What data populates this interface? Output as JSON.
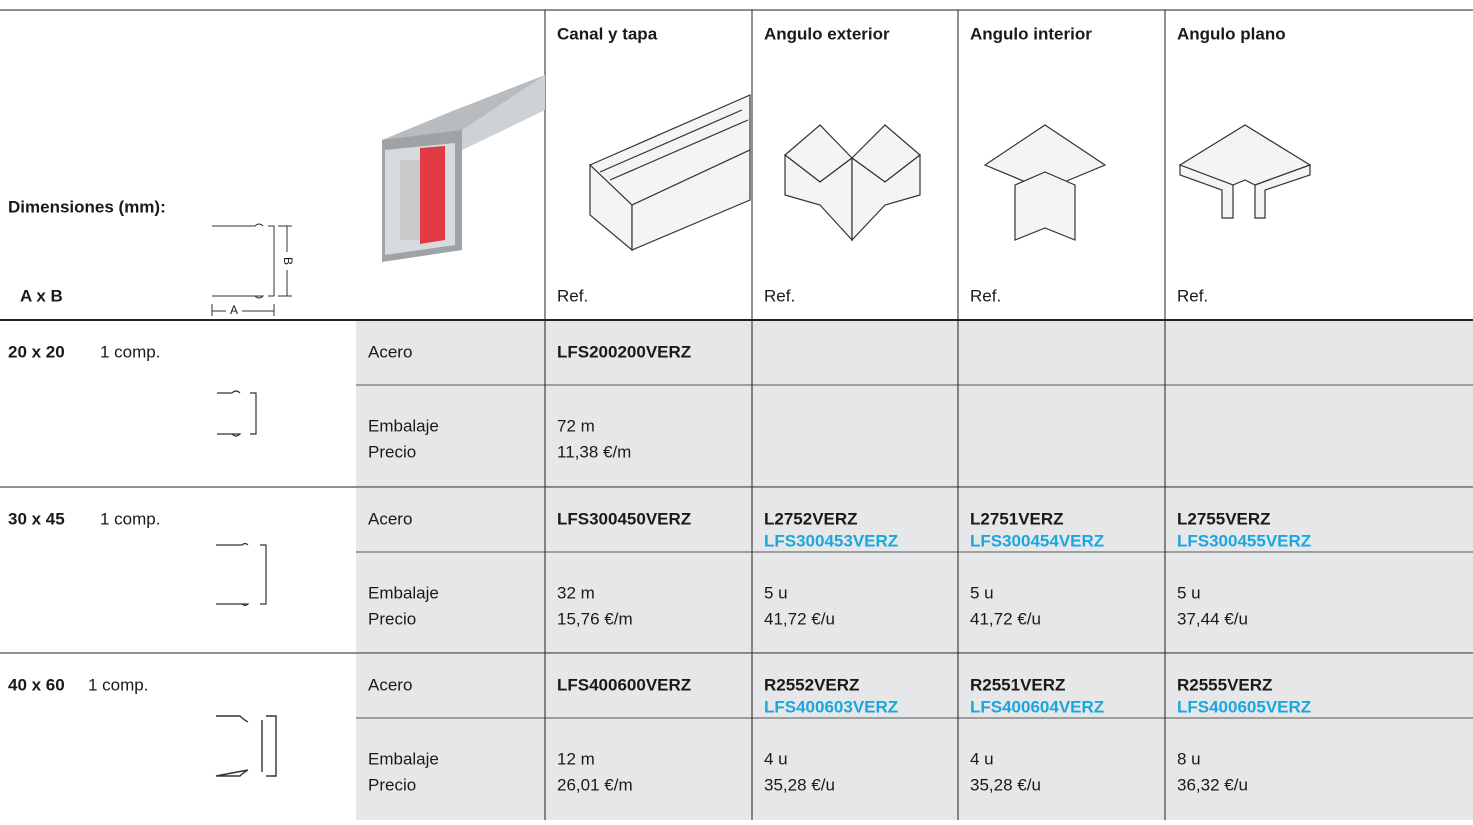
{
  "header": {
    "dimension_label": "Dimensiones (mm):",
    "axb_label": "A x B",
    "diagram_a": "A",
    "diagram_b": "B",
    "columns": [
      {
        "title": "Canal y tapa",
        "ref": "Ref."
      },
      {
        "title": "Angulo exterior",
        "ref": "Ref."
      },
      {
        "title": "Angulo interior",
        "ref": "Ref."
      },
      {
        "title": "Angulo plano",
        "ref": "Ref."
      }
    ]
  },
  "rows": [
    {
      "size": "20 x 20",
      "comp": "1 comp.",
      "material_label": "Acero",
      "packaging_label": "Embalaje",
      "price_label": "Precio",
      "cells": [
        {
          "ref": "LFS200200VERZ",
          "packaging": "72 m",
          "price": "11,38 €/m"
        }
      ]
    },
    {
      "size": "30 x 45",
      "comp": "1 comp.",
      "material_label": "Acero",
      "packaging_label": "Embalaje",
      "price_label": "Precio",
      "cells": [
        {
          "ref": "LFS300450VERZ",
          "packaging": "32 m",
          "price": "15,76 €/m"
        },
        {
          "ref": "L2752VERZ",
          "alt_ref": "LFS300453VERZ",
          "packaging": "5 u",
          "price": "41,72 €/u"
        },
        {
          "ref": "L2751VERZ",
          "alt_ref": "LFS300454VERZ",
          "packaging": "5 u",
          "price": "41,72 €/u"
        },
        {
          "ref": "L2755VERZ",
          "alt_ref": "LFS300455VERZ",
          "packaging": "5 u",
          "price": "37,44 €/u"
        }
      ]
    },
    {
      "size": "40 x 60",
      "comp": "1 comp.",
      "material_label": "Acero",
      "packaging_label": "Embalaje",
      "price_label": "Precio",
      "cells": [
        {
          "ref": "LFS400600VERZ",
          "packaging": "12 m",
          "price": "26,01 €/m"
        },
        {
          "ref": "R2552VERZ",
          "alt_ref": "LFS400603VERZ",
          "packaging": "4 u",
          "price": "35,28 €/u"
        },
        {
          "ref": "R2551VERZ",
          "alt_ref": "LFS400604VERZ",
          "packaging": "4 u",
          "price": "35,28 €/u"
        },
        {
          "ref": "R2555VERZ",
          "alt_ref": "LFS400605VERZ",
          "packaging": "8 u",
          "price": "36,32 €/u"
        }
      ]
    }
  ]
}
